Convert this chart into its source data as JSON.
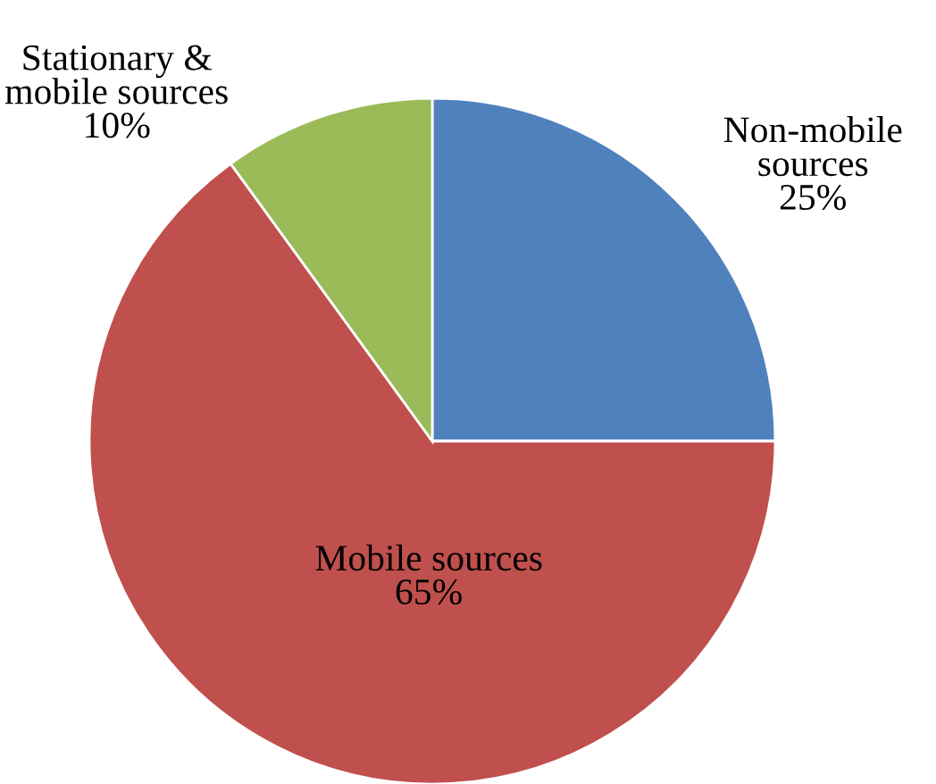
{
  "chart_data": {
    "type": "pie",
    "categories": [
      "Non-mobile\nsources",
      "Mobile sources",
      "Stationary &\nmobile sources"
    ],
    "values": [
      25,
      65,
      10
    ],
    "colors": [
      "#4f81bd",
      "#c0504d",
      "#9bbb59"
    ],
    "value_labels": [
      "25%",
      "65%",
      "10%"
    ],
    "legend": false
  }
}
